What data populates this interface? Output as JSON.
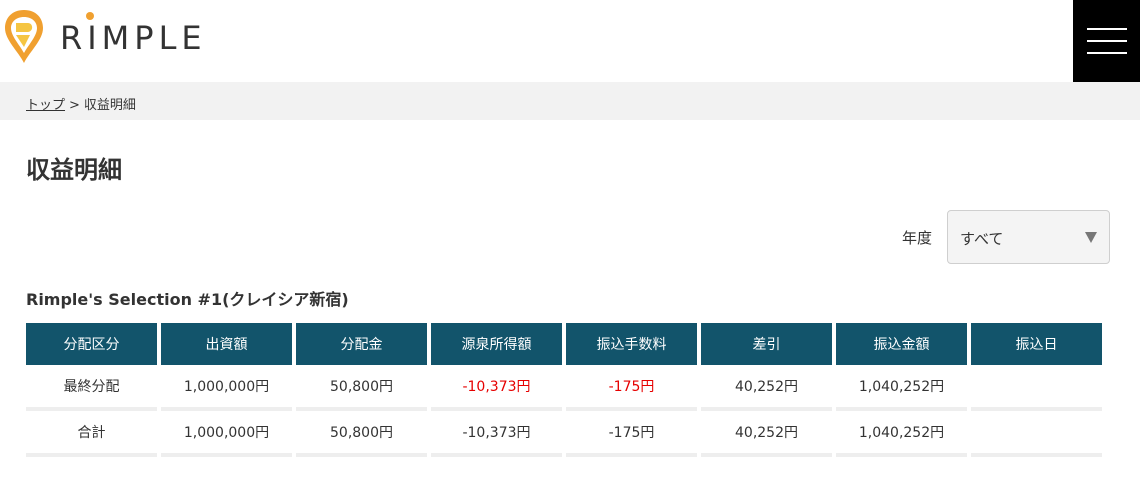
{
  "header": {
    "logo_text": "RIMPLE",
    "menu_icon": "hamburger-menu-icon",
    "colors": {
      "logo_orange": "#f0a030",
      "logo_yellow": "#f5c542",
      "menu_bg": "#000000"
    }
  },
  "breadcrumb": {
    "home_label": "トップ",
    "separator": ">",
    "current_label": "収益明細"
  },
  "page": {
    "title": "収益明細"
  },
  "filter": {
    "year_label": "年度",
    "year_selected": "すべて"
  },
  "fund": {
    "title": "Rimple's Selection #1(クレイシア新宿)"
  },
  "table": {
    "header_color": "#12546b",
    "negative_color": "#e60000",
    "columns": [
      "分配区分",
      "出資額",
      "分配金",
      "源泉所得額",
      "振込手数料",
      "差引",
      "振込金額",
      "振込日"
    ],
    "rows": [
      [
        "最終分配",
        "1,000,000円",
        "50,800円",
        "-10,373円",
        "-175円",
        "40,252円",
        "1,040,252円",
        ""
      ],
      [
        "合計",
        "1,000,000円",
        "50,800円",
        "-10,373円",
        "-175円",
        "40,252円",
        "1,040,252円",
        ""
      ]
    ]
  }
}
